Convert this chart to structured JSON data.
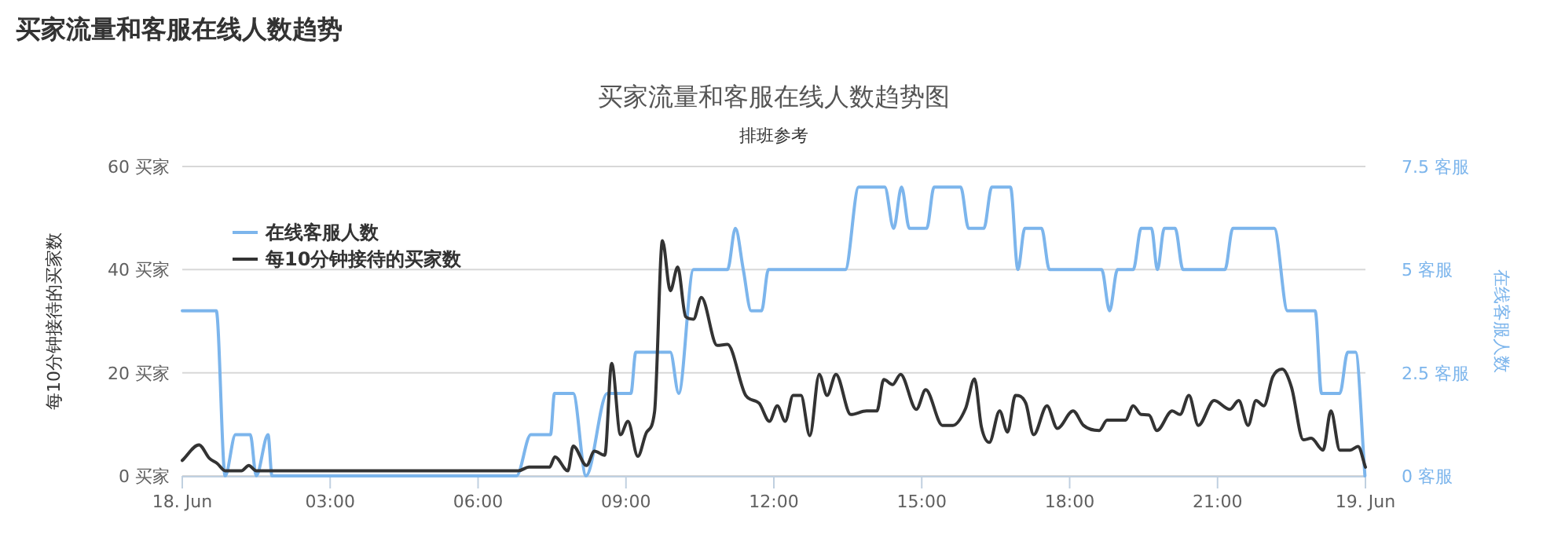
{
  "chart_data": {
    "type": "line",
    "title": "买家流量和客服在线人数趋势图",
    "subtitle": "排班参考",
    "annotations": [
      "买家流量和客服在线人数趋势"
    ],
    "ylabel": "每10分钟接待的买家数",
    "y2label": "在线客服人数",
    "legend": "top left",
    "grid": "y",
    "xlim": [
      0,
      24
    ],
    "xticks": [
      {
        "value": 0,
        "label": "18. Jun"
      },
      {
        "value": 3,
        "label": "03:00"
      },
      {
        "value": 6,
        "label": "06:00"
      },
      {
        "value": 9,
        "label": "09:00"
      },
      {
        "value": 12,
        "label": "12:00"
      },
      {
        "value": 15,
        "label": "15:00"
      },
      {
        "value": 18,
        "label": "18:00"
      },
      {
        "value": 21,
        "label": "21:00"
      },
      {
        "value": 24,
        "label": "19. Jun"
      }
    ],
    "ylim": [
      0,
      60
    ],
    "yticks": [
      {
        "value": 0,
        "label": "0 买家"
      },
      {
        "value": 20,
        "label": "20 买家"
      },
      {
        "value": 40,
        "label": "40 买家"
      },
      {
        "value": 60,
        "label": "60 买家"
      }
    ],
    "y2lim": [
      0,
      7.5
    ],
    "y2ticks": [
      {
        "value": 0,
        "label": "0 客服"
      },
      {
        "value": 2.5,
        "label": "2.5 客服"
      },
      {
        "value": 5,
        "label": "5 客服"
      },
      {
        "value": 7.5,
        "label": "7.5 客服"
      }
    ],
    "series": [
      {
        "name": "在线客服人数",
        "color": "#7cb5ec",
        "axis": "y2",
        "x": [
          0,
          0.69,
          0.87,
          1.08,
          1.38,
          1.5,
          1.74,
          1.82,
          6.78,
          7.07,
          7.47,
          7.55,
          7.93,
          8.19,
          8.62,
          9.1,
          9.2,
          9.9,
          10.07,
          10.37,
          11.06,
          11.22,
          11.38,
          11.54,
          11.75,
          11.89,
          13.45,
          13.72,
          14.25,
          14.43,
          14.59,
          14.75,
          15.1,
          15.25,
          15.79,
          15.95,
          16.26,
          16.42,
          16.8,
          16.95,
          17.09,
          17.43,
          17.59,
          18.65,
          18.81,
          18.97,
          19.29,
          19.45,
          19.66,
          19.78,
          19.92,
          20.14,
          20.3,
          21.15,
          21.31,
          22.15,
          22.42,
          22.98,
          23.11,
          23.48,
          23.64,
          23.8,
          23.99
        ],
        "values": [
          4,
          4,
          0,
          1,
          1,
          0,
          1,
          0,
          0,
          1,
          1,
          2,
          2,
          0,
          2,
          2,
          3,
          3,
          2,
          5,
          5,
          6,
          5,
          4,
          4,
          5,
          5,
          7,
          7,
          6,
          7,
          6,
          6,
          7,
          7,
          6,
          6,
          7,
          7,
          5,
          6,
          6,
          5,
          5,
          4,
          5,
          5,
          6,
          6,
          5,
          6,
          6,
          5,
          5,
          6,
          6,
          4,
          4,
          2,
          2,
          3,
          3,
          0
        ]
      },
      {
        "name": "每10分钟接待的买家数",
        "color": "#333333",
        "x": [
          0,
          0.34,
          0.55,
          0.71,
          0.87,
          1.2,
          1.35,
          1.5,
          6.82,
          7.03,
          7.45,
          7.56,
          7.82,
          7.93,
          8.2,
          8.36,
          8.57,
          8.71,
          8.89,
          9.04,
          9.24,
          9.42,
          9.58,
          9.74,
          9.9,
          10.05,
          10.21,
          10.37,
          10.53,
          10.85,
          11.06,
          11.43,
          11.7,
          11.91,
          12.07,
          12.23,
          12.39,
          12.55,
          12.73,
          12.92,
          13.08,
          13.26,
          13.56,
          13.88,
          14.09,
          14.23,
          14.41,
          14.57,
          14.89,
          15.08,
          15.42,
          15.63,
          15.89,
          16.07,
          16.21,
          16.37,
          16.58,
          16.74,
          16.9,
          17.11,
          17.27,
          17.54,
          17.75,
          18.07,
          18.28,
          18.6,
          18.76,
          19.13,
          19.29,
          19.45,
          19.61,
          19.77,
          20.08,
          20.24,
          20.42,
          20.61,
          20.93,
          21.25,
          21.43,
          21.62,
          21.78,
          21.94,
          22.12,
          22.31,
          22.5,
          22.74,
          22.9,
          23.14,
          23.3,
          23.48,
          23.69,
          23.85,
          24
        ],
        "values": [
          3,
          6,
          3.4,
          2.4,
          1,
          1,
          2,
          1,
          1,
          1.7,
          1.7,
          3.7,
          1,
          5.8,
          2,
          4.8,
          4,
          21.8,
          8,
          10.6,
          3.8,
          8.5,
          12.4,
          45.6,
          35.9,
          40.5,
          30.9,
          30.4,
          34.6,
          25.3,
          25.5,
          15.6,
          14.1,
          10.6,
          13.6,
          10.6,
          15.6,
          15.6,
          7.8,
          19.7,
          15.6,
          19.7,
          11.9,
          12.6,
          12.6,
          18.7,
          17.7,
          19.7,
          12.9,
          16.7,
          9.8,
          9.8,
          13.1,
          18.8,
          9.5,
          6.5,
          12.6,
          8.5,
          15.6,
          14.1,
          8,
          13.6,
          9.2,
          12.6,
          9.8,
          8.8,
          10.8,
          10.8,
          13.6,
          11.9,
          11.8,
          8.8,
          12.6,
          11.9,
          15.6,
          9.8,
          14.6,
          12.9,
          14.6,
          9.8,
          14.6,
          13.6,
          19.2,
          20.7,
          17.2,
          7,
          7.3,
          5,
          12.6,
          5,
          5,
          5.7,
          1.7
        ]
      }
    ]
  }
}
